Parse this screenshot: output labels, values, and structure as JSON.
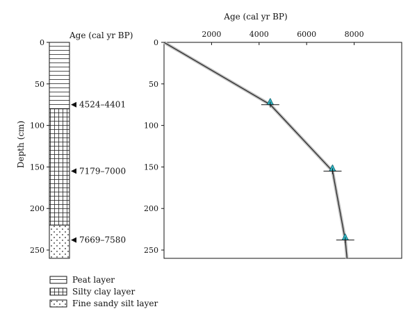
{
  "column": {
    "top_label": "Age (cal yr BP)",
    "ylabel": "Depth (cm)",
    "ylim": [
      0,
      260
    ],
    "yticks": [
      0,
      50,
      100,
      150,
      200,
      250
    ],
    "layers": [
      {
        "name": "Peat layer",
        "top": 0,
        "bottom": 80,
        "pattern": "horizontal-lines"
      },
      {
        "name": "Silty clay layer",
        "top": 80,
        "bottom": 220,
        "pattern": "grid"
      },
      {
        "name": "Fine sandy silt layer",
        "top": 220,
        "bottom": 260,
        "pattern": "dots"
      }
    ],
    "markers": [
      {
        "depth": 75,
        "label": "4524–4401"
      },
      {
        "depth": 155,
        "label": "7179–7000"
      },
      {
        "depth": 238,
        "label": "7669–7580"
      }
    ]
  },
  "chart_data": {
    "type": "line",
    "title": "",
    "xlabel": "Age (cal yr BP)",
    "ylabel": "",
    "xlim": [
      0,
      10000
    ],
    "ylim": [
      0,
      260
    ],
    "y_inverted": true,
    "xticks": [
      2000,
      4000,
      6000,
      8000
    ],
    "yticks": [
      0,
      50,
      100,
      150,
      200,
      250
    ],
    "x_axis_position": "top",
    "series": [
      {
        "x": [
          0,
          4470,
          7090,
          7625,
          7700
        ],
        "y": [
          0,
          75,
          155,
          238,
          260
        ]
      }
    ],
    "dates": [
      {
        "age": 4470,
        "depth": 75
      },
      {
        "age": 7090,
        "depth": 155
      },
      {
        "age": 7625,
        "depth": 238
      }
    ]
  }
}
